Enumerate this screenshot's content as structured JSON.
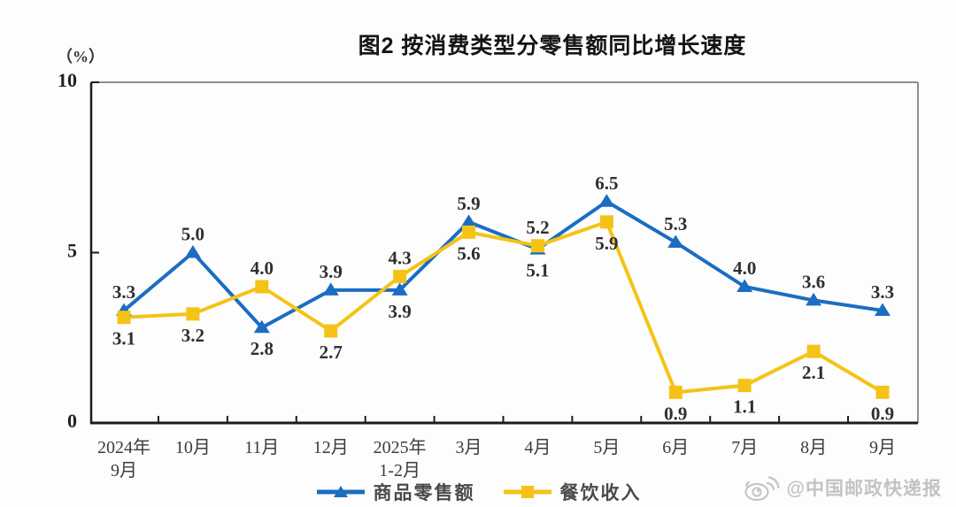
{
  "title": "图2  按消费类型分零售额同比增长速度",
  "chart_data": {
    "type": "line",
    "title": "图2 按消费类型分零售额同比增长速度",
    "ylabel": "（%）",
    "ylim": [
      0,
      10
    ],
    "yticks": [
      "0",
      "5",
      "10"
    ],
    "grid": false,
    "legend_position": "bottom",
    "categories": [
      "2024年9月",
      "10月",
      "11月",
      "12月",
      "2025年1-2月",
      "3月",
      "4月",
      "5月",
      "6月",
      "7月",
      "8月",
      "9月"
    ],
    "tick_lines": [
      [
        "2024年",
        "9月"
      ],
      [
        "10月"
      ],
      [
        "11月"
      ],
      [
        "12月"
      ],
      [
        "2025年",
        "1-2月"
      ],
      [
        "3月"
      ],
      [
        "4月"
      ],
      [
        "5月"
      ],
      [
        "6月"
      ],
      [
        "7月"
      ],
      [
        "8月"
      ],
      [
        "9月"
      ]
    ],
    "series": [
      {
        "name": "商品零售额",
        "marker": "triangle",
        "color": "#1B6DC2",
        "values": [
          3.3,
          5.0,
          2.8,
          3.9,
          3.9,
          5.9,
          5.1,
          6.5,
          5.3,
          4.0,
          3.6,
          3.3
        ]
      },
      {
        "name": "餐饮收入",
        "marker": "square",
        "color": "#F5C316",
        "values": [
          3.1,
          3.2,
          4.0,
          2.7,
          4.3,
          5.6,
          5.2,
          5.9,
          0.9,
          1.1,
          2.1,
          0.9
        ]
      }
    ]
  },
  "watermark": {
    "icon": "weibo-icon",
    "text": "@中国邮政快递报",
    "color": "#c3c3c3"
  },
  "colors": {
    "axis_main": "#1c1c1c",
    "frame_light": "#8f8f8f",
    "value_label": "#2f2f2f",
    "tick_label": "#3c3c3c"
  }
}
